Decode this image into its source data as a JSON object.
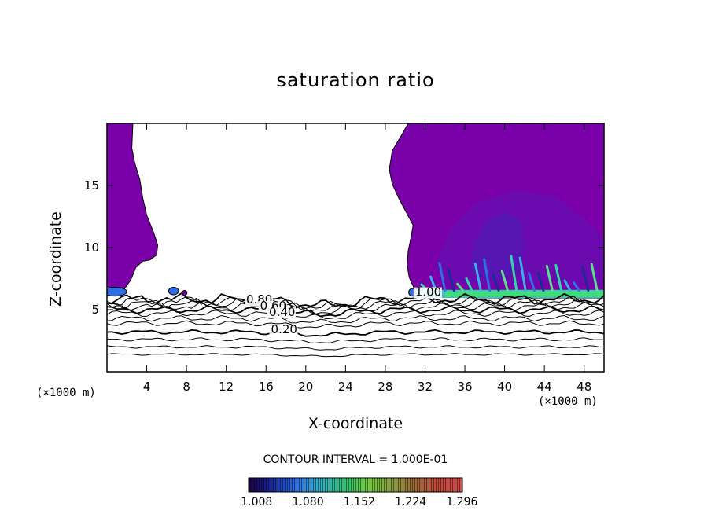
{
  "chart_data": {
    "type": "contour",
    "title": "saturation ratio",
    "xlabel": "X-coordinate",
    "ylabel": "Z-coordinate",
    "x_unit": "(×1000 m)",
    "y_unit": "(×1000 m)",
    "xlim": [
      0,
      50
    ],
    "ylim": [
      0,
      20
    ],
    "x_ticks": [
      4,
      8,
      12,
      16,
      20,
      24,
      28,
      32,
      36,
      40,
      44,
      48
    ],
    "y_ticks": [
      5,
      10,
      15
    ],
    "contour_interval_label": "CONTOUR INTERVAL = 1.000E-01",
    "contour_labels": [
      {
        "text": "0.80",
        "x": 14.0,
        "z": 5.5
      },
      {
        "text": "0.60",
        "x": 15.4,
        "z": 5.0
      },
      {
        "text": "0.40",
        "x": 16.3,
        "z": 4.5
      },
      {
        "text": "0.20",
        "x": 16.5,
        "z": 3.1
      },
      {
        "text": "1.00",
        "x": 31.0,
        "z": 6.1
      }
    ],
    "contour_levels_z": [
      1.4,
      2.0,
      2.6,
      3.2,
      3.9,
      4.3,
      4.7,
      5.0,
      5.25,
      5.5,
      5.7,
      5.85
    ],
    "supersaturated_regions": [
      {
        "name": "left column",
        "x_range": [
          0,
          5.5
        ],
        "z_range": [
          6.0,
          20.0
        ]
      },
      {
        "name": "right column",
        "x_range": [
          28.5,
          50
        ],
        "z_range": [
          5.9,
          20.0
        ]
      }
    ],
    "colorbar": {
      "ticks": [
        1.008,
        1.08,
        1.152,
        1.224,
        1.296
      ],
      "range": [
        1.0,
        1.3
      ],
      "colors": [
        "#1a0040",
        "#1a2a9a",
        "#2e6ee6",
        "#38b0c8",
        "#2fc07a",
        "#6fcf3f",
        "#8aa040",
        "#a06a3a",
        "#c04a38",
        "#d84a4a"
      ]
    }
  }
}
